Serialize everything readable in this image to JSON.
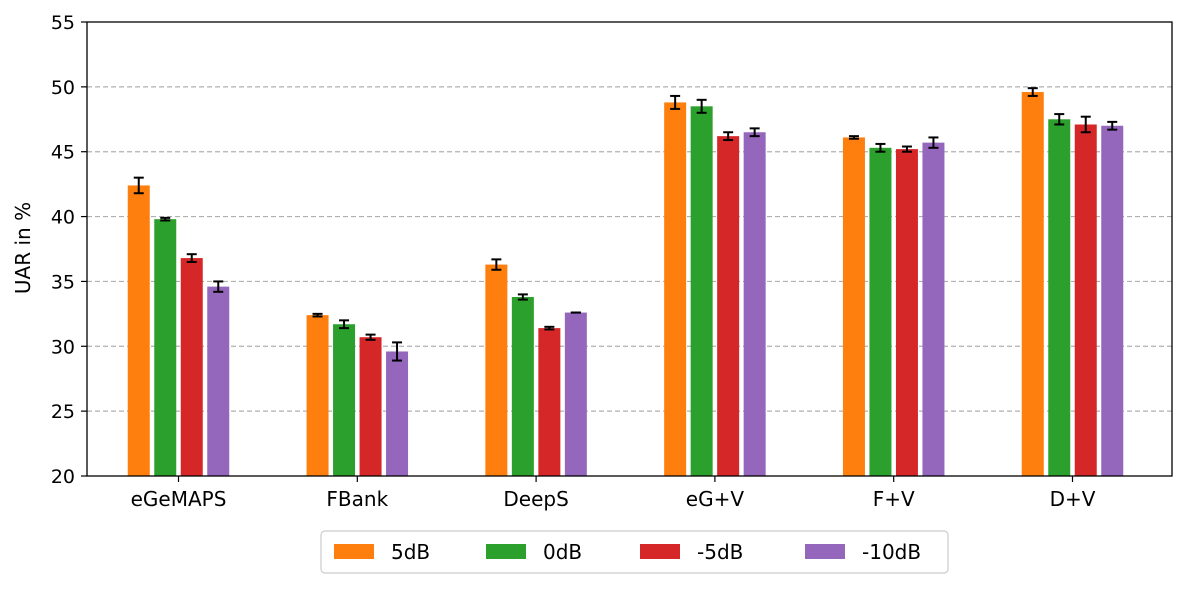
{
  "chart_data": {
    "type": "bar",
    "title": "",
    "xlabel": "",
    "ylabel": "UAR in %",
    "ylim": [
      20,
      55
    ],
    "yticks": [
      20,
      25,
      30,
      35,
      40,
      45,
      50,
      55
    ],
    "grid": "y dashed",
    "legend_position": "bottom-center",
    "categories": [
      "eGeMAPS",
      "FBank",
      "DeepS",
      "eG+V",
      "F+V",
      "D+V"
    ],
    "series": [
      {
        "name": "5dB",
        "color": "#ff7f0e",
        "values": [
          42.4,
          32.4,
          36.3,
          48.8,
          46.1,
          49.6
        ],
        "errors": [
          0.6,
          0.1,
          0.4,
          0.5,
          0.1,
          0.3
        ]
      },
      {
        "name": "0dB",
        "color": "#2ca02c",
        "values": [
          39.8,
          31.7,
          33.8,
          48.5,
          45.3,
          47.5
        ],
        "errors": [
          0.1,
          0.3,
          0.2,
          0.5,
          0.3,
          0.4
        ]
      },
      {
        "name": "-5dB",
        "color": "#d62728",
        "values": [
          36.8,
          30.7,
          31.4,
          46.2,
          45.2,
          47.1
        ],
        "errors": [
          0.3,
          0.2,
          0.1,
          0.3,
          0.2,
          0.6
        ]
      },
      {
        "name": "-10dB",
        "color": "#9467bd",
        "values": [
          34.6,
          29.6,
          32.6,
          46.5,
          45.7,
          47.0
        ],
        "errors": [
          0.4,
          0.7,
          0.0,
          0.3,
          0.4,
          0.3
        ]
      }
    ]
  }
}
